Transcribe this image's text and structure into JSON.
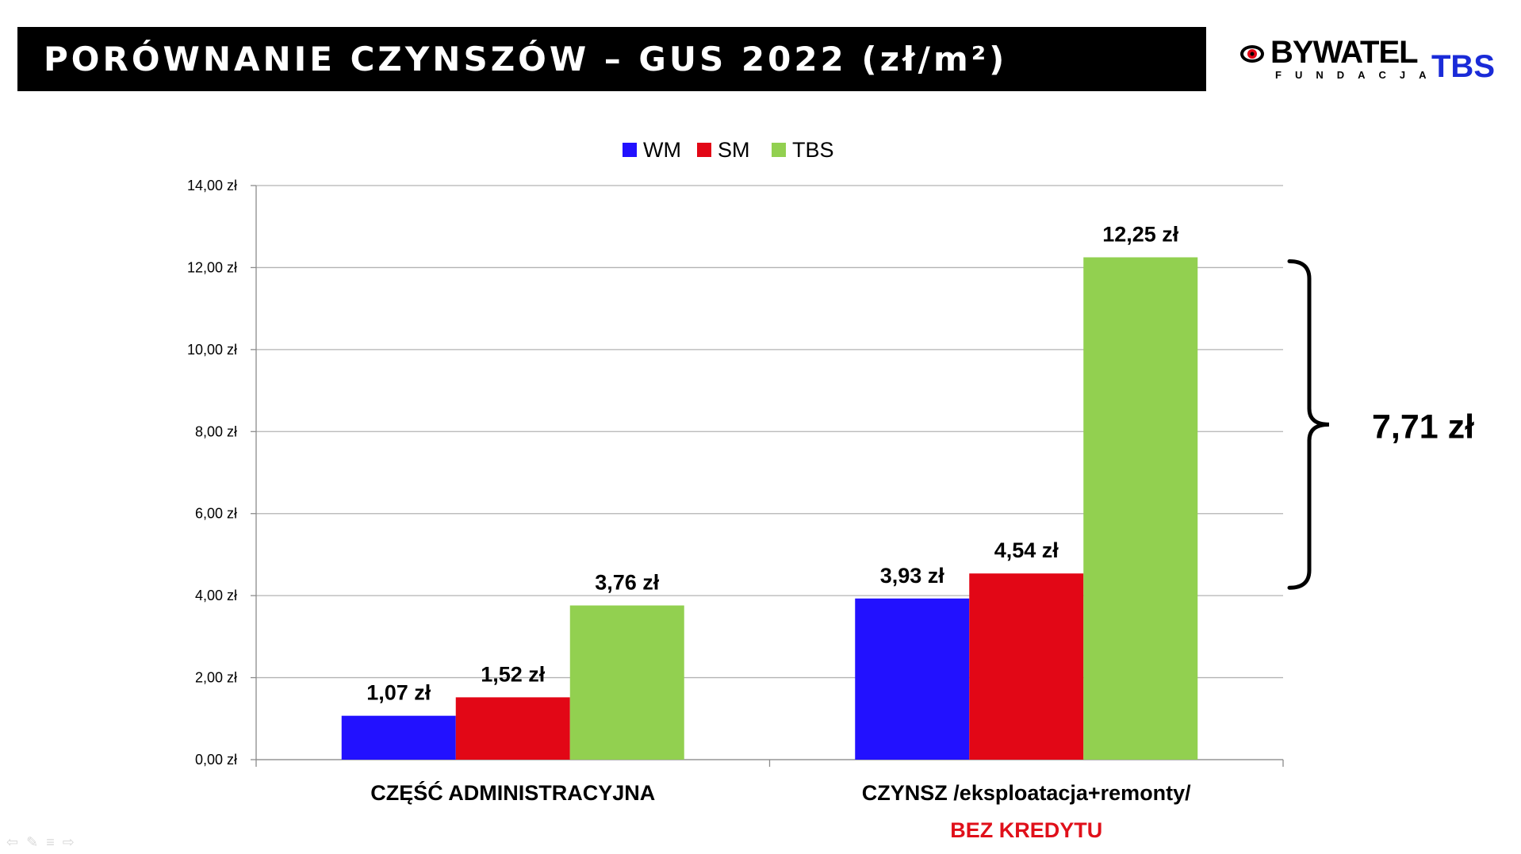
{
  "title": "PORÓWNANIE CZYNSZÓW – GUS 2022 (zł/m²)",
  "logo": {
    "main": "BYWATEL",
    "sub": "FUNDACJA",
    "brand": "TBS",
    "icon": "eye-icon",
    "brand_color": "#1a2bd8"
  },
  "chart_data": {
    "type": "bar",
    "categories": [
      "CZĘŚĆ ADMINISTRACYJNA",
      "CZYNSZ /eksploatacja+remonty/"
    ],
    "category_sublabels": [
      "",
      "BEZ KREDYTU"
    ],
    "series": [
      {
        "name": "WM",
        "color": "#2211ff",
        "values": [
          1.07,
          3.93
        ],
        "labels": [
          "1,07 zł",
          "3,93 zł"
        ]
      },
      {
        "name": "SM",
        "color": "#e20716",
        "values": [
          1.52,
          4.54
        ],
        "labels": [
          "1,52 zł",
          "4,54 zł"
        ]
      },
      {
        "name": "TBS",
        "color": "#92d050",
        "values": [
          3.76,
          12.25
        ],
        "labels": [
          "3,76 zł",
          "12,25 zł"
        ]
      }
    ],
    "ylim": [
      0,
      14
    ],
    "yticks": [
      0,
      2,
      4,
      6,
      8,
      10,
      12,
      14
    ],
    "ytick_labels": [
      "0,00 zł",
      "2,00 zł",
      "4,00 zł",
      "6,00 zł",
      "8,00 zł",
      "10,00 zł",
      "12,00 zł",
      "14,00 zł"
    ],
    "grid": true,
    "legend_position": "top",
    "sublabel_color": "#e0101a",
    "annotation": {
      "text": "7,71 zł",
      "from_value": 12.25,
      "to_value": 4.54
    }
  },
  "nav": {
    "icons": [
      "arrow-left-icon",
      "pen-icon",
      "menu-icon",
      "arrow-right-icon"
    ],
    "glyphs": [
      "⇦",
      "✎",
      "≡",
      "⇨"
    ]
  }
}
